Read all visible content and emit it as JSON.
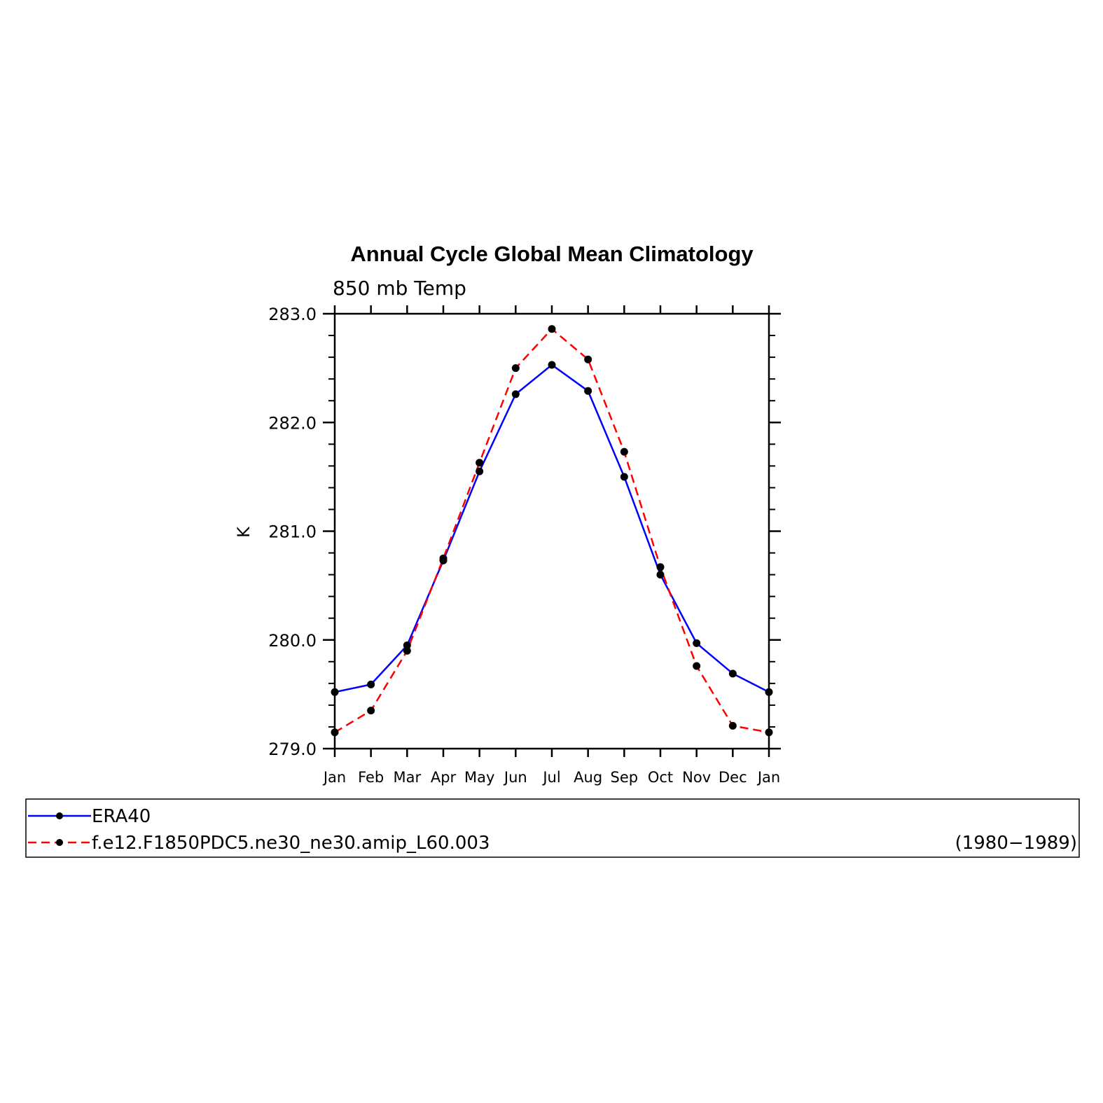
{
  "chart_data": {
    "type": "line",
    "title": "Annual Cycle Global Mean Climatology",
    "subtitle": "850 mb Temp",
    "ylabel": "K",
    "xlabel": "",
    "ylim": [
      279.0,
      283.0
    ],
    "y_ticks": [
      "279.0",
      "280.0",
      "281.0",
      "282.0",
      "283.0"
    ],
    "categories": [
      "Jan",
      "Feb",
      "Mar",
      "Apr",
      "May",
      "Jun",
      "Jul",
      "Aug",
      "Sep",
      "Oct",
      "Nov",
      "Dec",
      "Jan"
    ],
    "series": [
      {
        "name": "ERA40",
        "color": "#0000ff",
        "dash": "solid",
        "values": [
          279.52,
          279.59,
          279.95,
          280.73,
          281.55,
          282.26,
          282.53,
          282.29,
          281.5,
          280.6,
          279.97,
          279.69,
          279.52
        ]
      },
      {
        "name": "f.e12.F1850PDC5.ne30_ne30.amip_L60.003",
        "color": "#ff0000",
        "dash": "dashed",
        "values": [
          279.15,
          279.35,
          279.9,
          280.75,
          281.63,
          282.5,
          282.86,
          282.58,
          281.73,
          280.67,
          279.76,
          279.21,
          279.15
        ]
      }
    ],
    "legend_note": "(1980−1989)",
    "legend_position": "bottom",
    "grid": false
  }
}
